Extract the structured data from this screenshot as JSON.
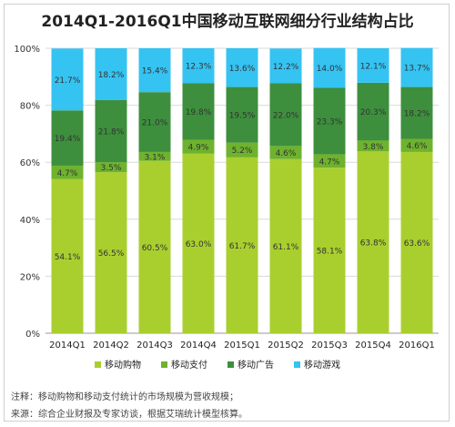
{
  "title": "2014Q1-2016Q1中国移动互联网细分行业结构占比",
  "notes": [
    "注释：移动购物和移动支付统计的市场规模为营收规模；",
    "来源：综合企业财报及专家访谈，根据艾瑞统计模型核算。"
  ],
  "colors": {
    "shopping": "#a9cf2f",
    "payment": "#6eb22e",
    "ads": "#3d8f3d",
    "games": "#35c3f2"
  },
  "chart_data": {
    "type": "bar",
    "stacked": true,
    "categories": [
      "2014Q1",
      "2014Q2",
      "2014Q3",
      "2014Q4",
      "2015Q1",
      "2015Q2",
      "2015Q3",
      "2015Q4",
      "2016Q1"
    ],
    "series": [
      {
        "name": "移动购物",
        "key": "shopping",
        "values": [
          54.1,
          56.5,
          60.5,
          63.0,
          61.7,
          61.1,
          58.1,
          63.8,
          63.6
        ]
      },
      {
        "name": "移动支付",
        "key": "payment",
        "values": [
          4.7,
          3.5,
          3.1,
          4.9,
          5.2,
          4.6,
          4.7,
          3.8,
          4.6
        ]
      },
      {
        "name": "移动广告",
        "key": "ads",
        "values": [
          19.4,
          21.8,
          21.0,
          19.8,
          19.5,
          22.0,
          23.3,
          20.3,
          18.2
        ]
      },
      {
        "name": "移动游戏",
        "key": "games",
        "values": [
          21.7,
          18.2,
          15.4,
          12.3,
          13.6,
          12.2,
          14.0,
          12.1,
          13.7
        ]
      }
    ],
    "yticks": [
      "0%",
      "20%",
      "40%",
      "60%",
      "80%",
      "100%"
    ],
    "ylim": [
      0,
      100
    ],
    "grid": true,
    "legend": "bottom"
  }
}
